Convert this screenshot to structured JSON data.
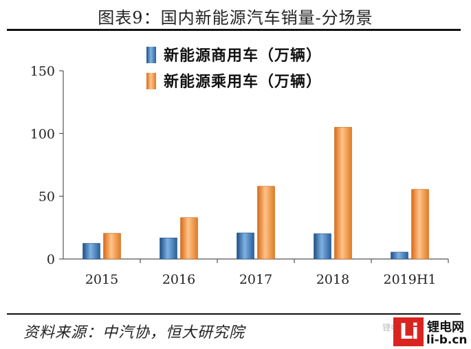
{
  "figure": {
    "title": "图表9：国内新能源汽车销量-分场景",
    "source": "资料来源：中汽协，恒大研究院"
  },
  "watermark": {
    "faint_text": "锂电网",
    "logo_text": "Li",
    "site_name": "锂电网",
    "site_url": "li-b.cn",
    "logo_color": "#d9241f"
  },
  "chart_data": {
    "type": "bar",
    "categories": [
      "2015",
      "2016",
      "2017",
      "2018",
      "2019H1"
    ],
    "series": [
      {
        "name": "新能源商用车（万辆）",
        "values": [
          12.5,
          16.8,
          20.8,
          20.2,
          5.5
        ],
        "color": "#3a78b8"
      },
      {
        "name": "新能源乘用车（万辆）",
        "values": [
          20.5,
          33.0,
          58.0,
          105.0,
          55.5
        ],
        "color": "#f0913a"
      }
    ],
    "yticks": [
      0,
      50,
      100,
      150
    ],
    "ylim": [
      0,
      150
    ],
    "xlabel": "",
    "ylabel": "",
    "legend_position": "top-center",
    "grid": false
  }
}
